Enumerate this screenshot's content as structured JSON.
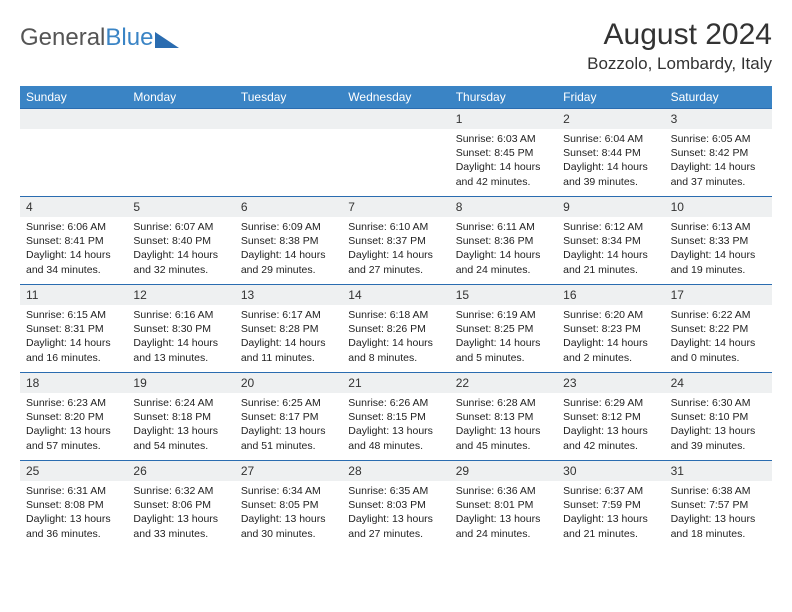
{
  "brand": {
    "part1": "General",
    "part2": "Blue"
  },
  "title": "August 2024",
  "location": "Bozzolo, Lombardy, Italy",
  "colors": {
    "header_bg": "#3a84c5",
    "border": "#2a6cb0",
    "daynum_bg": "#eef0f1",
    "text": "#333333",
    "body_text": "#222222",
    "white": "#ffffff"
  },
  "weekdays": [
    "Sunday",
    "Monday",
    "Tuesday",
    "Wednesday",
    "Thursday",
    "Friday",
    "Saturday"
  ],
  "weeks": [
    [
      {
        "n": "",
        "lines": []
      },
      {
        "n": "",
        "lines": []
      },
      {
        "n": "",
        "lines": []
      },
      {
        "n": "",
        "lines": []
      },
      {
        "n": "1",
        "lines": [
          "Sunrise: 6:03 AM",
          "Sunset: 8:45 PM",
          "Daylight: 14 hours and 42 minutes."
        ]
      },
      {
        "n": "2",
        "lines": [
          "Sunrise: 6:04 AM",
          "Sunset: 8:44 PM",
          "Daylight: 14 hours and 39 minutes."
        ]
      },
      {
        "n": "3",
        "lines": [
          "Sunrise: 6:05 AM",
          "Sunset: 8:42 PM",
          "Daylight: 14 hours and 37 minutes."
        ]
      }
    ],
    [
      {
        "n": "4",
        "lines": [
          "Sunrise: 6:06 AM",
          "Sunset: 8:41 PM",
          "Daylight: 14 hours and 34 minutes."
        ]
      },
      {
        "n": "5",
        "lines": [
          "Sunrise: 6:07 AM",
          "Sunset: 8:40 PM",
          "Daylight: 14 hours and 32 minutes."
        ]
      },
      {
        "n": "6",
        "lines": [
          "Sunrise: 6:09 AM",
          "Sunset: 8:38 PM",
          "Daylight: 14 hours and 29 minutes."
        ]
      },
      {
        "n": "7",
        "lines": [
          "Sunrise: 6:10 AM",
          "Sunset: 8:37 PM",
          "Daylight: 14 hours and 27 minutes."
        ]
      },
      {
        "n": "8",
        "lines": [
          "Sunrise: 6:11 AM",
          "Sunset: 8:36 PM",
          "Daylight: 14 hours and 24 minutes."
        ]
      },
      {
        "n": "9",
        "lines": [
          "Sunrise: 6:12 AM",
          "Sunset: 8:34 PM",
          "Daylight: 14 hours and 21 minutes."
        ]
      },
      {
        "n": "10",
        "lines": [
          "Sunrise: 6:13 AM",
          "Sunset: 8:33 PM",
          "Daylight: 14 hours and 19 minutes."
        ]
      }
    ],
    [
      {
        "n": "11",
        "lines": [
          "Sunrise: 6:15 AM",
          "Sunset: 8:31 PM",
          "Daylight: 14 hours and 16 minutes."
        ]
      },
      {
        "n": "12",
        "lines": [
          "Sunrise: 6:16 AM",
          "Sunset: 8:30 PM",
          "Daylight: 14 hours and 13 minutes."
        ]
      },
      {
        "n": "13",
        "lines": [
          "Sunrise: 6:17 AM",
          "Sunset: 8:28 PM",
          "Daylight: 14 hours and 11 minutes."
        ]
      },
      {
        "n": "14",
        "lines": [
          "Sunrise: 6:18 AM",
          "Sunset: 8:26 PM",
          "Daylight: 14 hours and 8 minutes."
        ]
      },
      {
        "n": "15",
        "lines": [
          "Sunrise: 6:19 AM",
          "Sunset: 8:25 PM",
          "Daylight: 14 hours and 5 minutes."
        ]
      },
      {
        "n": "16",
        "lines": [
          "Sunrise: 6:20 AM",
          "Sunset: 8:23 PM",
          "Daylight: 14 hours and 2 minutes."
        ]
      },
      {
        "n": "17",
        "lines": [
          "Sunrise: 6:22 AM",
          "Sunset: 8:22 PM",
          "Daylight: 14 hours and 0 minutes."
        ]
      }
    ],
    [
      {
        "n": "18",
        "lines": [
          "Sunrise: 6:23 AM",
          "Sunset: 8:20 PM",
          "Daylight: 13 hours and 57 minutes."
        ]
      },
      {
        "n": "19",
        "lines": [
          "Sunrise: 6:24 AM",
          "Sunset: 8:18 PM",
          "Daylight: 13 hours and 54 minutes."
        ]
      },
      {
        "n": "20",
        "lines": [
          "Sunrise: 6:25 AM",
          "Sunset: 8:17 PM",
          "Daylight: 13 hours and 51 minutes."
        ]
      },
      {
        "n": "21",
        "lines": [
          "Sunrise: 6:26 AM",
          "Sunset: 8:15 PM",
          "Daylight: 13 hours and 48 minutes."
        ]
      },
      {
        "n": "22",
        "lines": [
          "Sunrise: 6:28 AM",
          "Sunset: 8:13 PM",
          "Daylight: 13 hours and 45 minutes."
        ]
      },
      {
        "n": "23",
        "lines": [
          "Sunrise: 6:29 AM",
          "Sunset: 8:12 PM",
          "Daylight: 13 hours and 42 minutes."
        ]
      },
      {
        "n": "24",
        "lines": [
          "Sunrise: 6:30 AM",
          "Sunset: 8:10 PM",
          "Daylight: 13 hours and 39 minutes."
        ]
      }
    ],
    [
      {
        "n": "25",
        "lines": [
          "Sunrise: 6:31 AM",
          "Sunset: 8:08 PM",
          "Daylight: 13 hours and 36 minutes."
        ]
      },
      {
        "n": "26",
        "lines": [
          "Sunrise: 6:32 AM",
          "Sunset: 8:06 PM",
          "Daylight: 13 hours and 33 minutes."
        ]
      },
      {
        "n": "27",
        "lines": [
          "Sunrise: 6:34 AM",
          "Sunset: 8:05 PM",
          "Daylight: 13 hours and 30 minutes."
        ]
      },
      {
        "n": "28",
        "lines": [
          "Sunrise: 6:35 AM",
          "Sunset: 8:03 PM",
          "Daylight: 13 hours and 27 minutes."
        ]
      },
      {
        "n": "29",
        "lines": [
          "Sunrise: 6:36 AM",
          "Sunset: 8:01 PM",
          "Daylight: 13 hours and 24 minutes."
        ]
      },
      {
        "n": "30",
        "lines": [
          "Sunrise: 6:37 AM",
          "Sunset: 7:59 PM",
          "Daylight: 13 hours and 21 minutes."
        ]
      },
      {
        "n": "31",
        "lines": [
          "Sunrise: 6:38 AM",
          "Sunset: 7:57 PM",
          "Daylight: 13 hours and 18 minutes."
        ]
      }
    ]
  ]
}
